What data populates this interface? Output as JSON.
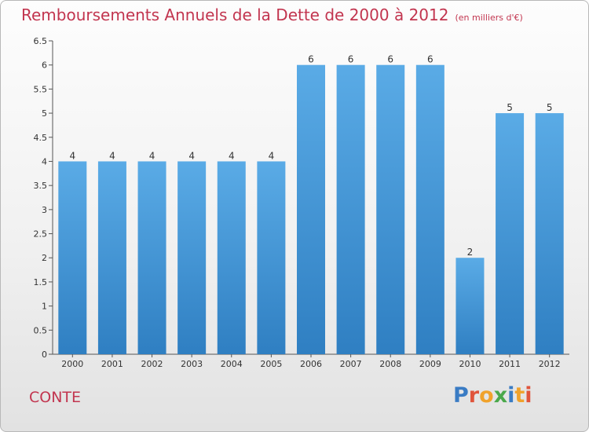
{
  "header": {
    "title": "Remboursements Annuels de la Dette de 2000 à 2012",
    "unit": "(en milliers d'€)"
  },
  "commune": "CONTE",
  "logo": {
    "text": "Proxiti",
    "letter_colors": [
      "#3a7cc4",
      "#e0543b",
      "#f0a22b",
      "#4aa84a",
      "#3a7cc4",
      "#f0a22b",
      "#e0543b"
    ]
  },
  "colors": {
    "bar_top": "#5aabe6",
    "bar_bottom": "#2f7fc2",
    "accent": "#c2354f"
  },
  "chart_data": {
    "type": "bar",
    "title": "Remboursements Annuels de la Dette de 2000 à 2012",
    "subtitle": "(en milliers d'€)",
    "xlabel": "",
    "ylabel": "",
    "categories": [
      "2000",
      "2001",
      "2002",
      "2003",
      "2004",
      "2005",
      "2006",
      "2007",
      "2008",
      "2009",
      "2010",
      "2011",
      "2012"
    ],
    "values": [
      4,
      4,
      4,
      4,
      4,
      4,
      6,
      6,
      6,
      6,
      2,
      5,
      5
    ],
    "data_labels": [
      "4",
      "4",
      "4",
      "4",
      "4",
      "4",
      "6",
      "6",
      "6",
      "6",
      "2",
      "5",
      "5"
    ],
    "ylim": [
      0,
      6.5
    ],
    "yticks": [
      0,
      0.5,
      1,
      1.5,
      2,
      2.5,
      3,
      3.5,
      4,
      4.5,
      5,
      5.5,
      6,
      6.5
    ],
    "ytick_labels": [
      "0",
      "0.5",
      "1",
      "1.5",
      "2",
      "2.5",
      "3",
      "3.5",
      "4",
      "4.5",
      "5",
      "5.5",
      "6",
      "6.5"
    ],
    "grid": false,
    "legend": "none"
  }
}
